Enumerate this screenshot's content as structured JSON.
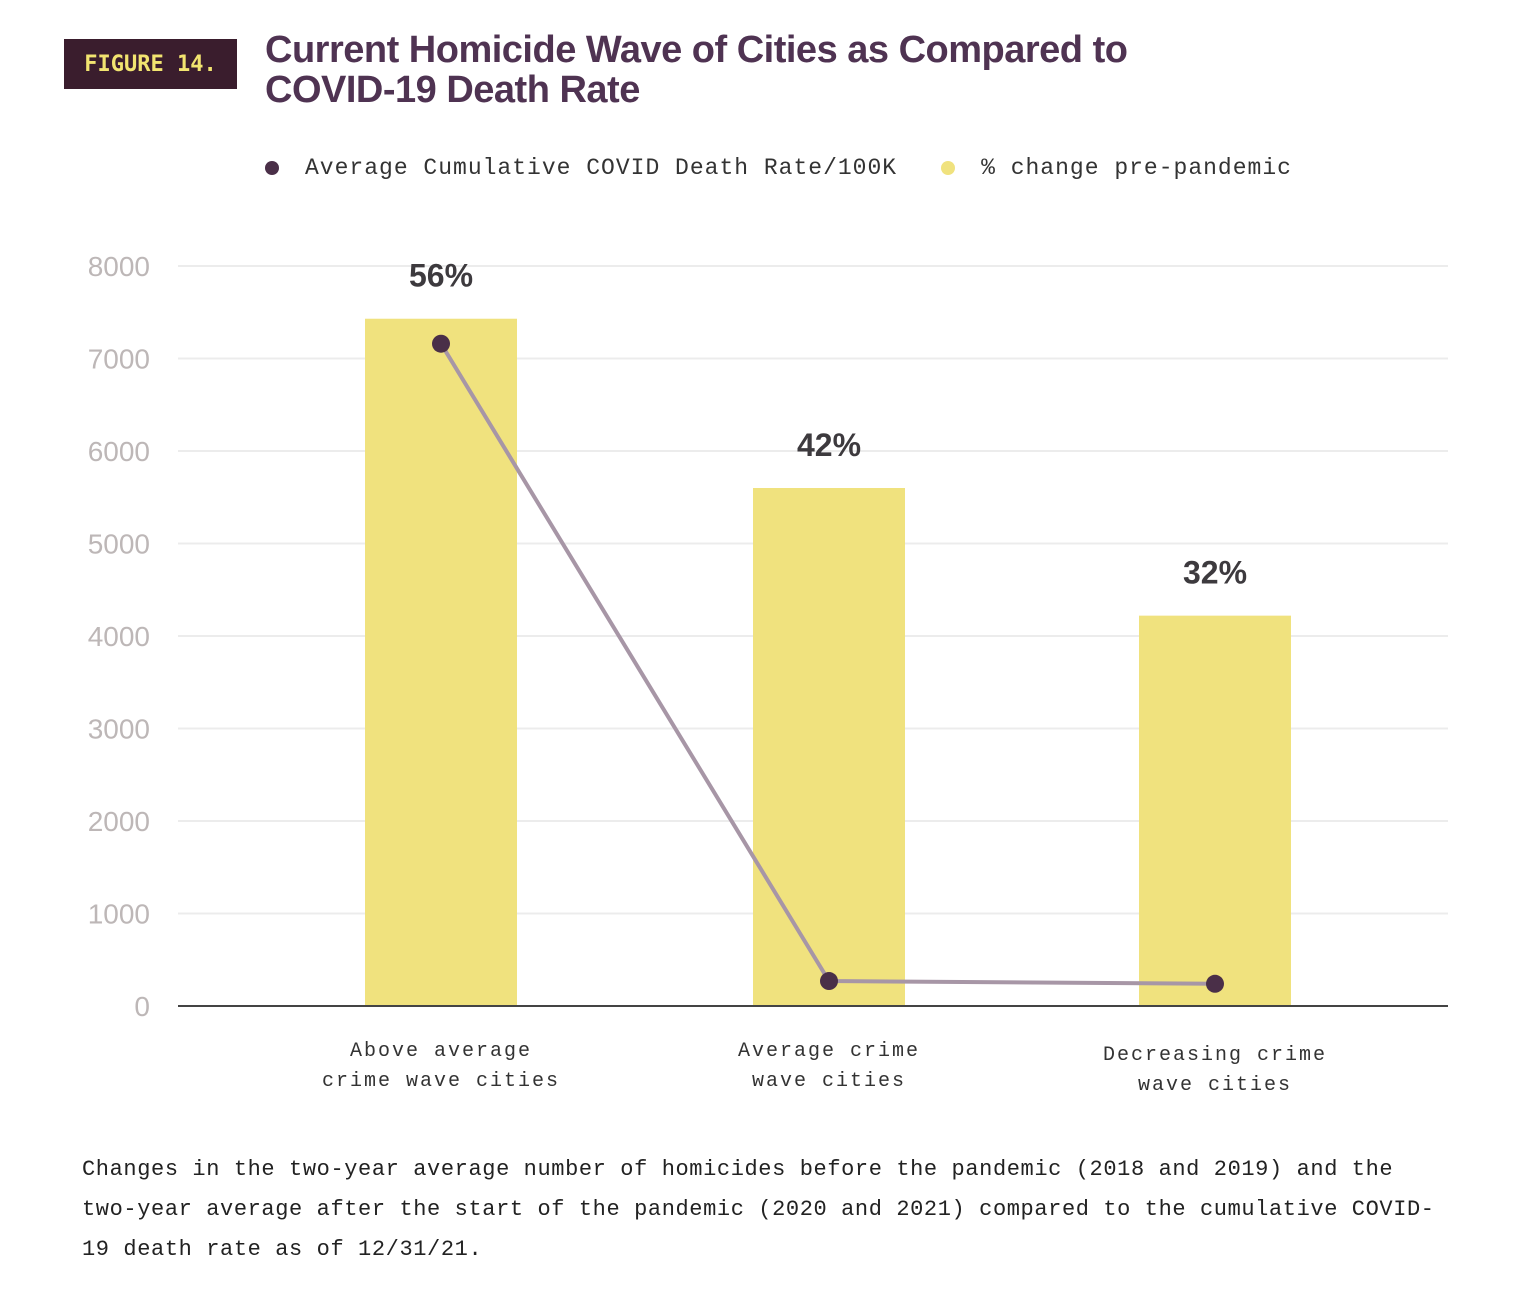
{
  "figure_label": "FIGURE 14.",
  "chart_data": {
    "type": "bar",
    "title": "Current Homicide Wave of Cities as Compared to COVID-19 Death Rate",
    "categories": [
      [
        "Above average",
        "crime wave cities"
      ],
      [
        "Average crime",
        "wave cities"
      ],
      [
        "Decreasing crime",
        "wave cities"
      ]
    ],
    "series": [
      {
        "name": "% change pre-pandemic",
        "type": "bar",
        "values": [
          7430,
          5600,
          4220
        ],
        "data_labels": [
          "56%",
          "42%",
          "32%"
        ],
        "color": "#f0e27e"
      },
      {
        "name": "Average Cumulative COVID Death Rate/100K",
        "type": "line",
        "values": [
          7160,
          270,
          240
        ],
        "color": "#4a2f48",
        "line_color": "#a796a6"
      }
    ],
    "ylim": [
      0,
      8000
    ],
    "yticks": [
      "0",
      "1000",
      "2000",
      "3000",
      "4000",
      "5000",
      "6000",
      "7000",
      "8000"
    ],
    "grid": true,
    "legend_position": "top"
  },
  "caption": "Changes in the two-year average number of homicides before the pandemic (2018 and 2019) and the two-year average after the start of the pandemic (2020 and 2021) compared to the cumulative COVID-19 death rate as of 12/31/21."
}
